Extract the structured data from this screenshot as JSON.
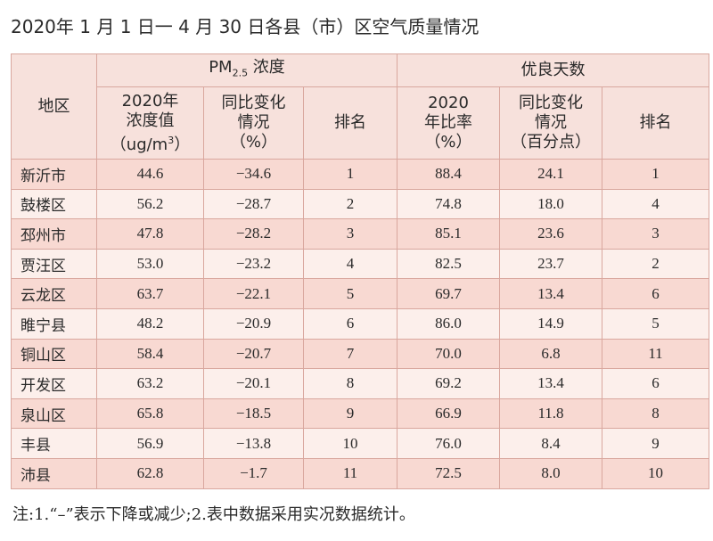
{
  "title": "2020年 1 月 1 日一 4 月 30 日各县（市）区空气质量情况",
  "table": {
    "region_header": "地区",
    "groups": [
      {
        "main": "PM",
        "sub": "2.5",
        "tail": " 浓度"
      },
      {
        "main": "优良天数"
      }
    ],
    "columns": [
      {
        "lines": [
          "2020年",
          "浓度值"
        ],
        "unit": {
          "pre": "（ug/m",
          "sup": "3",
          "post": "）"
        }
      },
      {
        "lines": [
          "同比变化",
          "情况",
          "（%）"
        ]
      },
      {
        "lines": [
          "排名"
        ]
      },
      {
        "lines": [
          "2020",
          "年比率",
          "（%）"
        ]
      },
      {
        "lines": [
          "同比变化",
          "情况",
          "（百分点）"
        ]
      },
      {
        "lines": [
          "排名"
        ]
      }
    ],
    "rows": [
      [
        "新沂市",
        "44.6",
        "−34.6",
        "1",
        "88.4",
        "24.1",
        "1"
      ],
      [
        "鼓楼区",
        "56.2",
        "−28.7",
        "2",
        "74.8",
        "18.0",
        "4"
      ],
      [
        "邳州市",
        "47.8",
        "−28.2",
        "3",
        "85.1",
        "23.6",
        "3"
      ],
      [
        "贾汪区",
        "53.0",
        "−23.2",
        "4",
        "82.5",
        "23.7",
        "2"
      ],
      [
        "云龙区",
        "63.7",
        "−22.1",
        "5",
        "69.7",
        "13.4",
        "6"
      ],
      [
        "睢宁县",
        "48.2",
        "−20.9",
        "6",
        "86.0",
        "14.9",
        "5"
      ],
      [
        "铜山区",
        "58.4",
        "−20.7",
        "7",
        "70.0",
        "6.8",
        "11"
      ],
      [
        "开发区",
        "63.2",
        "−20.1",
        "8",
        "69.2",
        "13.4",
        "6"
      ],
      [
        "泉山区",
        "65.8",
        "−18.5",
        "9",
        "66.9",
        "11.8",
        "8"
      ],
      [
        "丰县",
        "56.9",
        "−13.8",
        "10",
        "76.0",
        "8.4",
        "9"
      ],
      [
        "沛县",
        "62.8",
        "−1.7",
        "11",
        "72.5",
        "8.0",
        "10"
      ]
    ]
  },
  "note": "注:1.“–”表示下降或减少;2.表中数据采用实况数据统计。"
}
